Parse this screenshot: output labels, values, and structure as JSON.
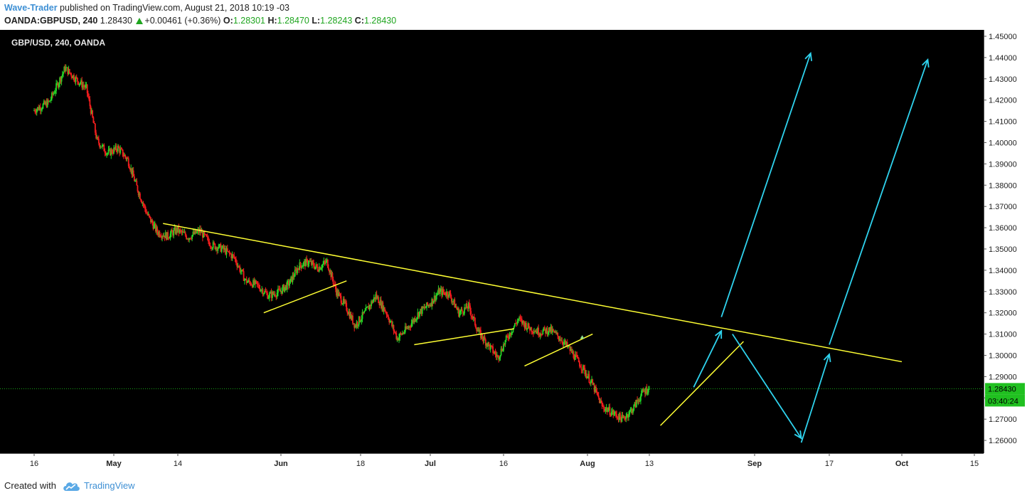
{
  "header": {
    "author": "Wave-Trader",
    "published": " published on TradingView.com, August 21, 2018 10:19 -03",
    "symbol": "OANDA:GBPUSD, 240",
    "last": " 1.28430 ",
    "change": "+0.00461 (+0.36%)",
    "o_label": " O:",
    "o_value": "1.28301",
    "h_label": " H:",
    "h_value": "1.28470",
    "l_label": " L:",
    "l_value": "1.28243",
    "c_label": " C:",
    "c_value": "1.28430"
  },
  "footer": {
    "created_with": "Created with",
    "brand": "TradingView",
    "logo_icon": "tradingview-cloud-icon"
  },
  "chart_data": {
    "type": "candlestick",
    "title": "GBP/USD, 240, OANDA",
    "x_tick_labels": [
      "16",
      "May",
      "14",
      "Jun",
      "18",
      "Jul",
      "16",
      "Aug",
      "13",
      "Sep",
      "17",
      "Oct",
      "15"
    ],
    "y_tick_labels": [
      "1.45000",
      "1.44000",
      "1.43000",
      "1.42000",
      "1.41000",
      "1.40000",
      "1.39000",
      "1.38000",
      "1.37000",
      "1.36000",
      "1.35000",
      "1.34000",
      "1.33000",
      "1.32000",
      "1.31000",
      "1.30000",
      "1.29000",
      "1.28000",
      "1.27000",
      "1.26000"
    ],
    "ylim": [
      1.254,
      1.453
    ],
    "last_price": 1.2843,
    "last_price_label": "1.28430",
    "countdown_label": "03:40:24",
    "grid": false,
    "colors": {
      "background": "#000000",
      "up": "#26d626",
      "down": "#f01d1d",
      "trendline": "#ffff33",
      "projection": "#2fd3ee",
      "price_line": "#18a818",
      "axis_bg": "#ffffff"
    },
    "price_path": [
      [
        0,
        1.415
      ],
      [
        3,
        1.419
      ],
      [
        6,
        1.435
      ],
      [
        8,
        1.43
      ],
      [
        10,
        1.4255
      ],
      [
        12,
        1.401
      ],
      [
        14,
        1.395
      ],
      [
        16,
        1.3975
      ],
      [
        18,
        1.392
      ],
      [
        20,
        1.378
      ],
      [
        22,
        1.366
      ],
      [
        24,
        1.358
      ],
      [
        26,
        1.356
      ],
      [
        28,
        1.359
      ],
      [
        30,
        1.3555
      ],
      [
        32,
        1.3585
      ],
      [
        34,
        1.352
      ],
      [
        36,
        1.35
      ],
      [
        38,
        1.346
      ],
      [
        40,
        1.335
      ],
      [
        42,
        1.333
      ],
      [
        44,
        1.328
      ],
      [
        46,
        1.33
      ],
      [
        48,
        1.334
      ],
      [
        50,
        1.342
      ],
      [
        52,
        1.344
      ],
      [
        54,
        1.341
      ],
      [
        56,
        1.344
      ],
      [
        58,
        1.33
      ],
      [
        60,
        1.323
      ],
      [
        62,
        1.314
      ],
      [
        64,
        1.32
      ],
      [
        66,
        1.328
      ],
      [
        68,
        1.32
      ],
      [
        70,
        1.308
      ],
      [
        72,
        1.313
      ],
      [
        74,
        1.32
      ],
      [
        76,
        1.324
      ],
      [
        78,
        1.33
      ],
      [
        80,
        1.329
      ],
      [
        82,
        1.32
      ],
      [
        84,
        1.323
      ],
      [
        86,
        1.311
      ],
      [
        88,
        1.305
      ],
      [
        90,
        1.299
      ],
      [
        92,
        1.309
      ],
      [
        94,
        1.317
      ],
      [
        96,
        1.313
      ],
      [
        98,
        1.311
      ],
      [
        100,
        1.312
      ],
      [
        102,
        1.308
      ],
      [
        104,
        1.302
      ],
      [
        106,
        1.295
      ],
      [
        108,
        1.287
      ],
      [
        110,
        1.276
      ],
      [
        112,
        1.273
      ],
      [
        114,
        1.27
      ],
      [
        116,
        1.275
      ],
      [
        118,
        1.283
      ],
      [
        119,
        1.2843
      ]
    ],
    "annotations": {
      "trendlines": [
        {
          "from": [
            "May 11",
            1.362
          ],
          "to": [
            "Oct 01",
            1.297
          ]
        },
        {
          "from": [
            "May 29",
            1.32
          ],
          "to": [
            "Jun 15",
            1.335
          ]
        },
        {
          "from": [
            "Jun 28",
            1.305
          ],
          "to": [
            "Jul 18",
            1.3125
          ]
        },
        {
          "from": [
            "Jul 20",
            1.295
          ],
          "to": [
            "Aug 02",
            1.31
          ]
        },
        {
          "from": [
            "Aug 15",
            1.267
          ],
          "to": [
            "Aug 30",
            1.3065
          ]
        }
      ],
      "arrows": [
        {
          "from": [
            "Aug 21",
            1.285
          ],
          "to": [
            "Aug 26",
            1.3115
          ]
        },
        {
          "from": [
            "Aug 26",
            1.318
          ],
          "to": [
            "Sep 13",
            1.442
          ]
        },
        {
          "from": [
            "Aug 28",
            1.31
          ],
          "to": [
            "Sep 11",
            1.261
          ]
        },
        {
          "from": [
            "Sep 11",
            1.259
          ],
          "to": [
            "Sep 17",
            1.3005
          ]
        },
        {
          "from": [
            "Sep 17",
            1.305
          ],
          "to": [
            "Oct 06",
            1.439
          ]
        }
      ]
    }
  }
}
